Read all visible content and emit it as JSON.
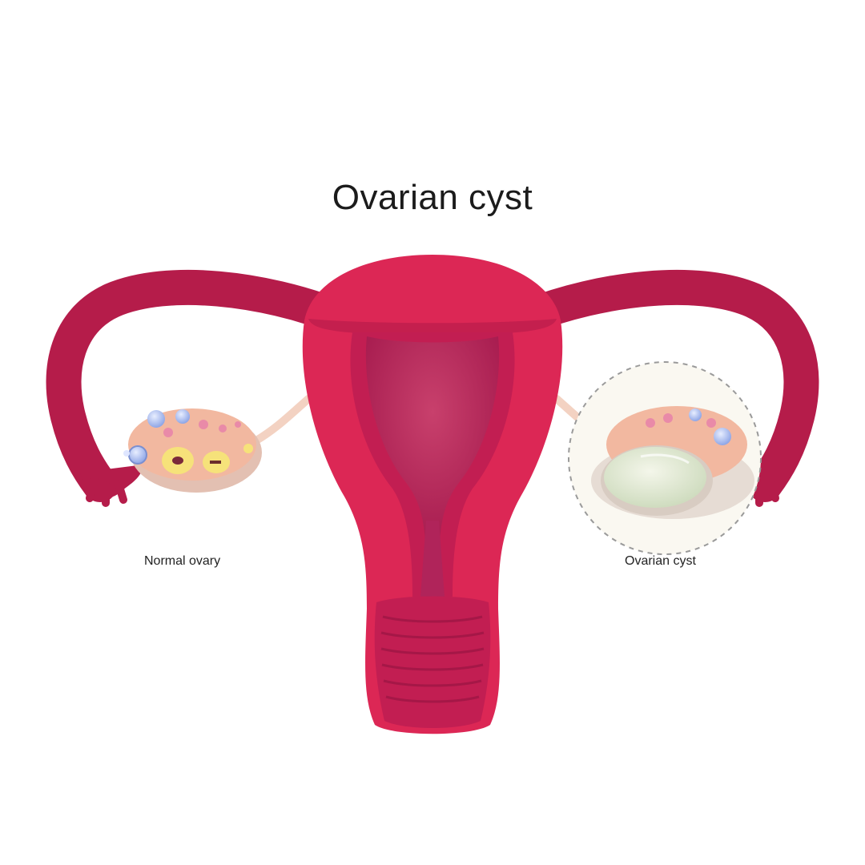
{
  "title": "Ovarian cyst",
  "labels": {
    "left": "Normal ovary",
    "right": "Ovarian cyst"
  },
  "colors": {
    "uterus_wall": "#dc2755",
    "uterus_dark": "#b8174a",
    "cavity": "#b0245a",
    "tube": "#b51c4a",
    "ovary": "#f2b8a0",
    "cyst_fluid": "#e4ead7",
    "follicle": "#b8c8f0"
  }
}
